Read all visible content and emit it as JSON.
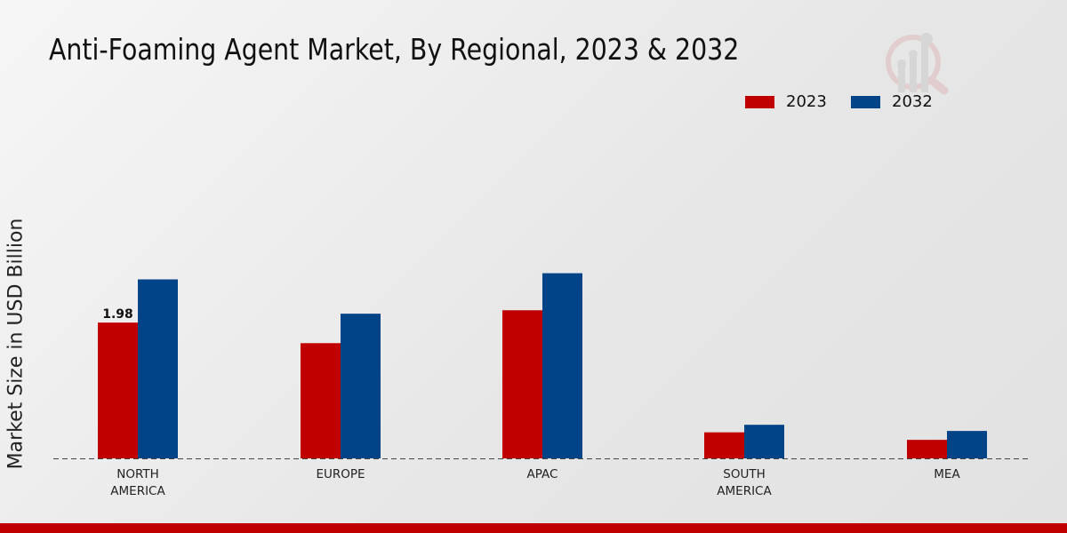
{
  "chart_data": {
    "type": "bar",
    "title": "Anti-Foaming Agent Market, By Regional, 2023 & 2032",
    "ylabel": "Market Size in USD Billion",
    "xlabel": "",
    "categories": [
      [
        "NORTH",
        "AMERICA"
      ],
      [
        "EUROPE"
      ],
      [
        "APAC"
      ],
      [
        "SOUTH",
        "AMERICA"
      ],
      [
        "MEA"
      ]
    ],
    "series": [
      {
        "name": "2023",
        "color": "#c00000",
        "values": [
          1.98,
          1.68,
          2.16,
          0.38,
          0.27
        ]
      },
      {
        "name": "2032",
        "color": "#004487",
        "values": [
          2.61,
          2.11,
          2.7,
          0.49,
          0.4
        ]
      }
    ],
    "data_labels": [
      {
        "series": 0,
        "index": 0,
        "text": "1.98"
      }
    ],
    "ylim": [
      0,
      5
    ],
    "grid": false,
    "legend_position": "top-right"
  }
}
